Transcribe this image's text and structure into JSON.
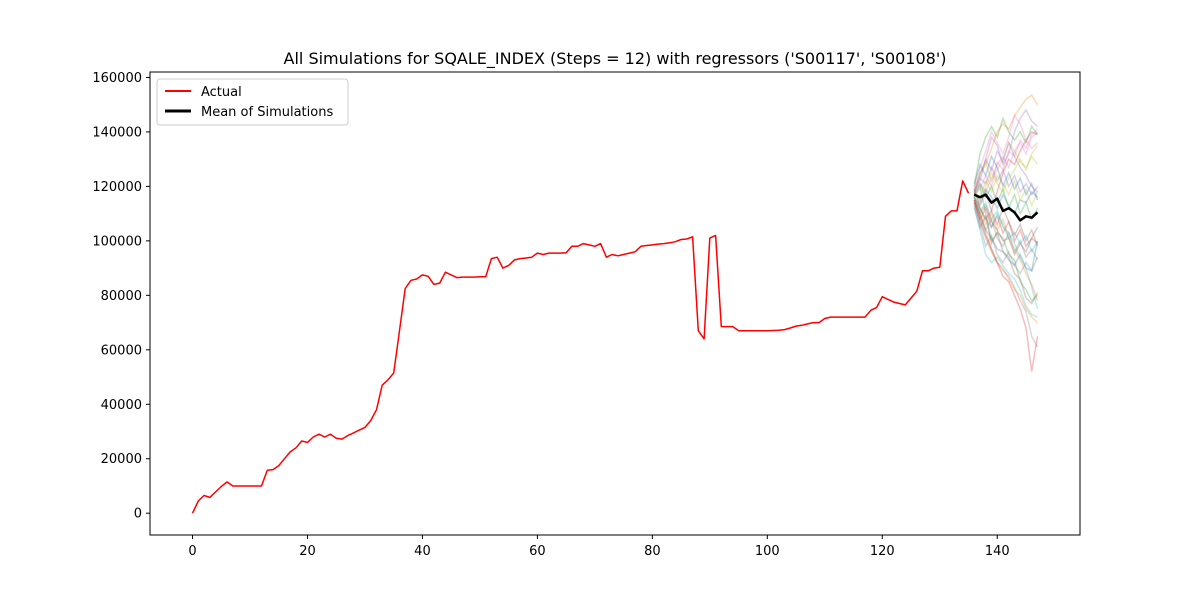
{
  "chart_data": {
    "type": "line",
    "title": "All Simulations for SQALE_INDEX (Steps = 12) with regressors ('S00117', 'S00108')",
    "xlabel": "",
    "ylabel": "",
    "xlim": [
      -7.4,
      154.4
    ],
    "ylim": [
      -8000,
      162000
    ],
    "xticks": [
      0,
      20,
      40,
      60,
      80,
      100,
      120,
      140
    ],
    "yticks": [
      0,
      20000,
      40000,
      60000,
      80000,
      100000,
      120000,
      140000,
      160000
    ],
    "grid": false,
    "legend": {
      "location": "upper left",
      "entries": [
        {
          "label": "Actual",
          "color": "#ff0000"
        },
        {
          "label": "Mean of Simulations",
          "color": "#000000"
        }
      ]
    },
    "actual": {
      "name": "Actual",
      "color": "#ff0000",
      "x": [
        0,
        1,
        2,
        3,
        4,
        5,
        6,
        7,
        8,
        9,
        10,
        11,
        12,
        13,
        14,
        15,
        16,
        17,
        18,
        19,
        20,
        21,
        22,
        23,
        24,
        25,
        26,
        27,
        28,
        29,
        30,
        31,
        32,
        33,
        34,
        35,
        36,
        37,
        38,
        39,
        40,
        41,
        42,
        43,
        44,
        45,
        46,
        47,
        48,
        49,
        50,
        51,
        52,
        53,
        54,
        55,
        56,
        57,
        58,
        59,
        60,
        61,
        62,
        63,
        64,
        65,
        66,
        67,
        68,
        69,
        70,
        71,
        72,
        73,
        74,
        75,
        76,
        77,
        78,
        79,
        80,
        81,
        82,
        83,
        84,
        85,
        86,
        87,
        88,
        89,
        90,
        91,
        92,
        93,
        94,
        95,
        96,
        97,
        98,
        99,
        100,
        101,
        102,
        103,
        104,
        105,
        106,
        107,
        108,
        109,
        110,
        111,
        112,
        113,
        114,
        115,
        116,
        117,
        118,
        119,
        120,
        121,
        122,
        123,
        124,
        125,
        126,
        127,
        128,
        129,
        130,
        131,
        132,
        133,
        134,
        135
      ],
      "y": [
        0,
        4500,
        6500,
        5800,
        7800,
        9800,
        11500,
        10000,
        10000,
        10000,
        10000,
        10000,
        10000,
        15800,
        16000,
        17500,
        20000,
        22500,
        24000,
        26500,
        26000,
        28000,
        29000,
        28000,
        29000,
        27500,
        27200,
        28500,
        29500,
        30500,
        31500,
        34000,
        38000,
        47000,
        49000,
        51500,
        67000,
        82500,
        85500,
        86000,
        87500,
        87000,
        84000,
        84500,
        88500,
        87500,
        86500,
        86700,
        86700,
        86700,
        86800,
        86800,
        93500,
        94000,
        90000,
        91000,
        93000,
        93500,
        93700,
        94000,
        95500,
        95000,
        95500,
        95500,
        95500,
        95600,
        98000,
        98000,
        99000,
        98500,
        98000,
        99000,
        94000,
        95000,
        94500,
        95000,
        95500,
        96000,
        98000,
        98300,
        98500,
        98800,
        99000,
        99300,
        99700,
        100500,
        100700,
        101500,
        67000,
        64000,
        101000,
        102000,
        68500,
        68500,
        68500,
        67000,
        67000,
        67000,
        67000,
        67000,
        67000,
        67100,
        67200,
        67400,
        68000,
        68700,
        69000,
        69500,
        70000,
        70000,
        71500,
        72000,
        72000,
        72000,
        72000,
        72000,
        72000,
        72000,
        74500,
        75500,
        79500,
        78500,
        77500,
        77000,
        76500,
        79000,
        81500,
        89000,
        89000,
        90000,
        90300,
        109000,
        111000,
        111000,
        122000,
        117500
      ]
    },
    "mean_simulation": {
      "name": "Mean of Simulations",
      "color": "#000000",
      "x": [
        136,
        137,
        138,
        139,
        140,
        141,
        142,
        143,
        144,
        145,
        146,
        147
      ],
      "y": [
        117000,
        116000,
        117000,
        114000,
        115500,
        111000,
        112000,
        110500,
        107500,
        109000,
        108500,
        110500
      ]
    },
    "simulation_colors": [
      "#1f77b4",
      "#ff7f0e",
      "#2ca02c",
      "#d62728",
      "#9467bd",
      "#8c564b",
      "#e377c2",
      "#7f7f7f",
      "#bcbd22",
      "#17becf"
    ],
    "simulations": {
      "x": [
        136,
        137,
        138,
        139,
        140,
        141,
        142,
        143,
        144,
        145,
        146,
        147
      ],
      "series": [
        [
          115000,
          110000,
          104000,
          101000,
          97000,
          96000,
          93000,
          91000,
          95000,
          90000,
          89000,
          100000
        ],
        [
          117000,
          125000,
          128000,
          134000,
          140000,
          143000,
          141000,
          146000,
          149000,
          152000,
          153500,
          150000
        ],
        [
          116000,
          120000,
          110000,
          100000,
          103000,
          101000,
          95000,
          93000,
          85000,
          82000,
          78000,
          80000
        ],
        [
          119000,
          112000,
          108000,
          111000,
          118000,
          125000,
          130000,
          128000,
          133000,
          137000,
          140000,
          139000
        ],
        [
          118000,
          122000,
          130000,
          138000,
          135000,
          128000,
          132000,
          140000,
          145000,
          148000,
          144000,
          142000
        ],
        [
          116000,
          110000,
          113000,
          107000,
          104000,
          100000,
          101000,
          95000,
          99000,
          96000,
          101000,
          105000
        ],
        [
          117000,
          121000,
          118000,
          123000,
          128000,
          131000,
          127000,
          133000,
          136000,
          132000,
          138000,
          140000
        ],
        [
          114000,
          106000,
          98000,
          102000,
          95000,
          92000,
          96000,
          91000,
          88000,
          92000,
          89000,
          94000
        ],
        [
          119000,
          125000,
          129000,
          122000,
          126000,
          130000,
          136000,
          133000,
          129000,
          127000,
          131000,
          128000
        ],
        [
          112000,
          104000,
          95000,
          92000,
          94000,
          91000,
          88000,
          86000,
          82000,
          76000,
          73000,
          72000
        ],
        [
          118000,
          114000,
          119000,
          116000,
          112000,
          117000,
          113000,
          110000,
          115000,
          114000,
          118000,
          116000
        ],
        [
          116000,
          110000,
          103000,
          97000,
          92000,
          90000,
          86000,
          82000,
          80000,
          75000,
          72000,
          70000
        ],
        [
          120000,
          132000,
          138000,
          142000,
          138000,
          145000,
          140000,
          137000,
          140000,
          136000,
          142000,
          139000
        ],
        [
          115000,
          108000,
          112000,
          105000,
          109000,
          103000,
          107000,
          100000,
          104000,
          98000,
          101000,
          99000
        ],
        [
          118000,
          123000,
          121000,
          127000,
          122000,
          126000,
          120000,
          124000,
          118000,
          121000,
          117000,
          120000
        ],
        [
          113000,
          105000,
          109000,
          99000,
          103000,
          96000,
          94000,
          88000,
          86000,
          79000,
          77000,
          81000
        ],
        [
          117000,
          119000,
          124000,
          120000,
          129000,
          126000,
          133000,
          131000,
          137000,
          134000,
          139000,
          141000
        ],
        [
          114000,
          107000,
          101000,
          96000,
          92000,
          89000,
          87000,
          83000,
          78000,
          74000,
          65000,
          61000
        ],
        [
          118000,
          116000,
          122000,
          118000,
          124000,
          121000,
          117000,
          122000,
          115000,
          119000,
          113000,
          118000
        ],
        [
          116000,
          111000,
          114000,
          108000,
          111000,
          105000,
          103000,
          99000,
          94000,
          90000,
          83000,
          75000
        ],
        [
          121000,
          128000,
          124000,
          131000,
          127000,
          120000,
          125000,
          119000,
          123000,
          117000,
          121000,
          115000
        ],
        [
          115000,
          112000,
          106000,
          110000,
          104000,
          108000,
          101000,
          97000,
          93000,
          88000,
          84000,
          78000
        ],
        [
          117000,
          121000,
          116000,
          120000,
          114000,
          119000,
          112000,
          117000,
          110000,
          114000,
          108000,
          112000
        ],
        [
          115000,
          108000,
          102000,
          97000,
          92000,
          87000,
          85000,
          80000,
          75000,
          68000,
          52000,
          65000
        ],
        [
          118000,
          124000,
          130000,
          126000,
          133000,
          129000,
          136000,
          131000,
          127000,
          124000,
          120000,
          118000
        ],
        [
          116000,
          113000,
          118000,
          111000,
          106000,
          112000,
          107000,
          102000,
          106000,
          100000,
          104000,
          98000
        ],
        [
          119000,
          127000,
          133000,
          140000,
          136000,
          132000,
          138000,
          146000,
          143000,
          137000,
          134000,
          136000
        ],
        [
          114000,
          109000,
          104000,
          108000,
          101000,
          98000,
          103000,
          96000,
          100000,
          94000,
          97000,
          93000
        ],
        [
          117000,
          115000,
          120000,
          125000,
          121000,
          118000,
          123000,
          126000,
          130000,
          126000,
          132000,
          135000
        ],
        [
          116000,
          112000,
          108000,
          105000,
          110000,
          106000,
          101000,
          103000,
          99000,
          102000,
          96000,
          100000
        ]
      ]
    }
  }
}
